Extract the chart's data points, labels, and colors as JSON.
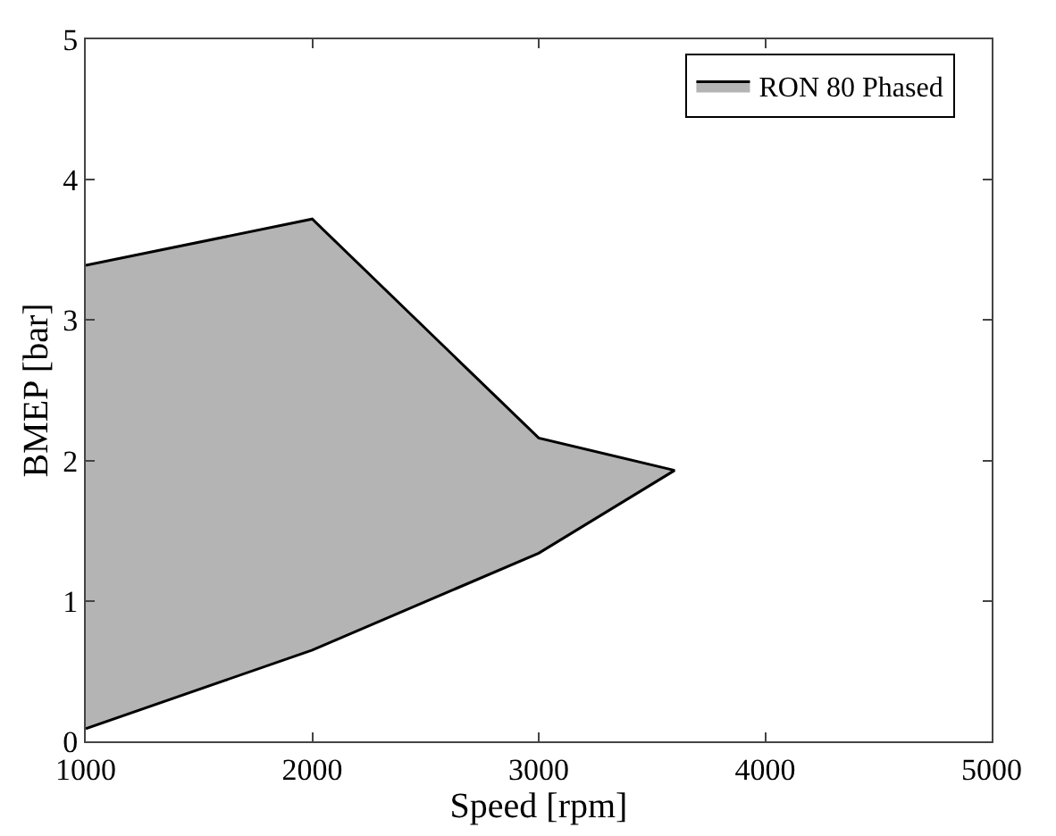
{
  "chart_data": {
    "type": "area",
    "xlabel": "Speed [rpm]",
    "ylabel": "BMEP [bar]",
    "series": [
      {
        "name": "RON 80 Phased",
        "color": "#b4b4b4",
        "x": [
          1000,
          2000,
          3000,
          3600,
          3000,
          2000,
          1000
        ],
        "values": [
          3.39,
          3.72,
          2.16,
          1.93,
          1.34,
          0.65,
          0.09
        ]
      }
    ],
    "xlim": [
      1000,
      5000
    ],
    "ylim": [
      0,
      5
    ],
    "xticks": [
      1000,
      2000,
      3000,
      4000,
      5000
    ],
    "yticks": [
      0,
      1,
      2,
      3,
      4,
      5
    ],
    "legend": "top right"
  }
}
